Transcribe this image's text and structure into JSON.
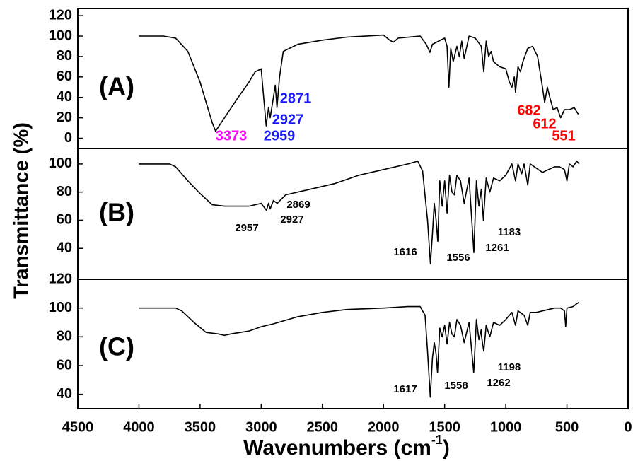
{
  "chart_data": [
    {
      "type": "line",
      "label": "(A)",
      "x": [
        4000,
        3800,
        3700,
        3600,
        3500,
        3450,
        3400,
        3373,
        3300,
        3200,
        3100,
        3050,
        3000,
        2980,
        2959,
        2940,
        2927,
        2900,
        2885,
        2871,
        2850,
        2820,
        2700,
        2500,
        2300,
        2000,
        1950,
        1920,
        1880,
        1700,
        1650,
        1620,
        1600,
        1500,
        1480,
        1465,
        1450,
        1430,
        1400,
        1380,
        1360,
        1340,
        1300,
        1250,
        1200,
        1180,
        1160,
        1140,
        1120,
        1100,
        1050,
        1000,
        970,
        950,
        930,
        920,
        900,
        880,
        860,
        820,
        780,
        740,
        700,
        682,
        660,
        640,
        612,
        580,
        551,
        520,
        480,
        440,
        410,
        400
      ],
      "series": [
        {
          "color": "#000000",
          "values": [
            100,
            100,
            98,
            85,
            55,
            35,
            15,
            7,
            20,
            38,
            55,
            65,
            68,
            40,
            12,
            30,
            20,
            40,
            52,
            30,
            60,
            85,
            92,
            96,
            99,
            101,
            96,
            94,
            98,
            100,
            92,
            84,
            92,
            98,
            90,
            50,
            88,
            75,
            90,
            80,
            95,
            78,
            100,
            98,
            90,
            65,
            95,
            80,
            85,
            75,
            70,
            68,
            55,
            50,
            60,
            45,
            70,
            65,
            75,
            88,
            90,
            80,
            50,
            35,
            50,
            40,
            28,
            30,
            20,
            28,
            28,
            30,
            24,
            24
          ]
        }
      ],
      "xlim": [
        4500,
        0
      ],
      "ylim": [
        -10,
        127
      ],
      "yticks": [
        0,
        20,
        40,
        60,
        80,
        100,
        120
      ],
      "annotations": [
        {
          "text": "3373",
          "color": "#ff00ff"
        },
        {
          "text": "2959",
          "color": "#1a1aff"
        },
        {
          "text": "2927",
          "color": "#1a1aff"
        },
        {
          "text": "2871",
          "color": "#1a1aff"
        },
        {
          "text": "682",
          "color": "#ff0000"
        },
        {
          "text": "612",
          "color": "#ff0000"
        },
        {
          "text": "551",
          "color": "#ff0000"
        }
      ]
    },
    {
      "type": "line",
      "label": "(B)",
      "ylabel": "Transmittance (%)",
      "x": [
        4000,
        3750,
        3700,
        3600,
        3500,
        3400,
        3300,
        3200,
        3100,
        3000,
        2957,
        2940,
        2927,
        2900,
        2869,
        2800,
        2600,
        2400,
        2200,
        2000,
        1800,
        1720,
        1680,
        1640,
        1616,
        1600,
        1585,
        1570,
        1556,
        1540,
        1520,
        1500,
        1480,
        1460,
        1440,
        1420,
        1400,
        1370,
        1340,
        1300,
        1261,
        1240,
        1220,
        1200,
        1183,
        1160,
        1130,
        1100,
        1050,
        1000,
        950,
        920,
        900,
        870,
        850,
        820,
        800,
        750,
        700,
        650,
        600,
        560,
        520,
        500,
        480,
        450,
        420,
        400
      ],
      "series": [
        {
          "color": "#000000",
          "values": [
            100,
            100,
            98,
            88,
            79,
            71,
            70,
            70,
            70,
            72,
            67,
            72,
            68,
            74,
            72,
            78,
            82,
            86,
            92,
            96,
            100,
            102,
            95,
            60,
            29,
            50,
            72,
            60,
            45,
            88,
            70,
            88,
            65,
            92,
            80,
            78,
            92,
            88,
            72,
            90,
            37,
            88,
            70,
            82,
            60,
            90,
            80,
            90,
            88,
            92,
            100,
            88,
            100,
            93,
            100,
            85,
            100,
            97,
            94,
            96,
            98,
            98,
            96,
            88,
            100,
            98,
            102,
            100
          ]
        }
      ],
      "xlim": [
        4500,
        0
      ],
      "ylim": [
        18,
        111
      ],
      "yticks": [
        40,
        60,
        80,
        100
      ],
      "annotations": [
        {
          "text": "2957",
          "color": "#000000"
        },
        {
          "text": "2927",
          "color": "#000000"
        },
        {
          "text": "2869",
          "color": "#000000"
        },
        {
          "text": "1616",
          "color": "#000000"
        },
        {
          "text": "1556",
          "color": "#000000"
        },
        {
          "text": "1261",
          "color": "#000000"
        },
        {
          "text": "1183",
          "color": "#000000"
        }
      ]
    },
    {
      "type": "line",
      "label": "(C)",
      "xlabel": {
        "text": "Wavenumbers (cm",
        "superscript": "-1",
        "suffix": ")"
      },
      "x": [
        4000,
        3700,
        3650,
        3550,
        3450,
        3350,
        3300,
        3250,
        3100,
        3000,
        2900,
        2700,
        2500,
        2300,
        2000,
        1800,
        1700,
        1660,
        1640,
        1617,
        1600,
        1585,
        1570,
        1558,
        1540,
        1520,
        1500,
        1480,
        1460,
        1440,
        1420,
        1400,
        1370,
        1340,
        1300,
        1262,
        1240,
        1220,
        1200,
        1198,
        1180,
        1160,
        1130,
        1100,
        1050,
        1000,
        950,
        920,
        900,
        850,
        820,
        800,
        750,
        700,
        650,
        600,
        550,
        520,
        510,
        500,
        450,
        420,
        400
      ],
      "series": [
        {
          "color": "#000000",
          "values": [
            100,
            100,
            98,
            90,
            83,
            82,
            81,
            82,
            84,
            87,
            89,
            94,
            97,
            99,
            100,
            101,
            101,
            95,
            70,
            38,
            65,
            76,
            68,
            55,
            86,
            80,
            88,
            75,
            90,
            82,
            80,
            92,
            88,
            76,
            90,
            55,
            92,
            78,
            85,
            80,
            70,
            88,
            80,
            90,
            88,
            92,
            97,
            88,
            98,
            95,
            88,
            97,
            97,
            98,
            99,
            100,
            100,
            98,
            87,
            100,
            101,
            103,
            104
          ]
        }
      ],
      "xlim": [
        4500,
        0
      ],
      "ylim": [
        30,
        120
      ],
      "yticks": [
        40,
        60,
        80,
        100,
        120
      ],
      "xticks": [
        4500,
        4000,
        3500,
        3000,
        2500,
        2000,
        1500,
        1000,
        500,
        0
      ],
      "annotations": [
        {
          "text": "1617",
          "color": "#000000"
        },
        {
          "text": "1558",
          "color": "#000000"
        },
        {
          "text": "1262",
          "color": "#000000"
        },
        {
          "text": "1198",
          "color": "#000000"
        }
      ]
    }
  ]
}
